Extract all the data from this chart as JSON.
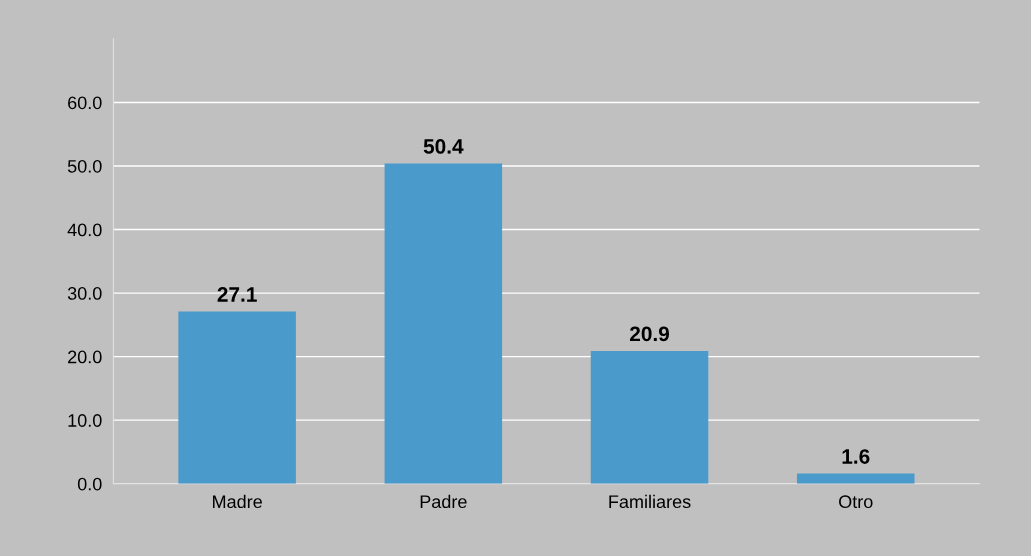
{
  "chart_data": {
    "type": "bar",
    "categories": [
      "Madre",
      "Padre",
      "Familiares",
      "Otro"
    ],
    "values": [
      27.1,
      50.4,
      20.9,
      1.6
    ],
    "color": "#4a9bcb",
    "data_labels": true,
    "ylim": [
      0,
      70
    ],
    "yticks": [
      {
        "value": 0,
        "label": "0.0"
      },
      {
        "value": 10,
        "label": "10.0"
      },
      {
        "value": 20,
        "label": "20.0"
      },
      {
        "value": 30,
        "label": "30.0"
      },
      {
        "value": 40,
        "label": "40.0"
      },
      {
        "value": 50,
        "label": "50.0"
      },
      {
        "value": 60,
        "label": "60.0"
      }
    ],
    "grid": "y",
    "legend": false
  }
}
